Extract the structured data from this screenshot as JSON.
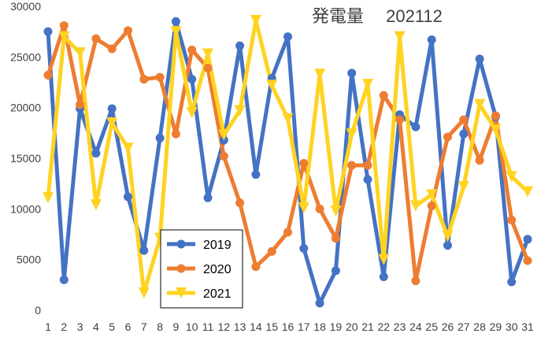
{
  "chart_data": {
    "type": "line",
    "title": "発電量　 202112",
    "xlabel": "",
    "ylabel": "",
    "x": [
      1,
      2,
      3,
      4,
      5,
      6,
      7,
      8,
      9,
      10,
      11,
      12,
      13,
      14,
      15,
      16,
      17,
      18,
      19,
      20,
      21,
      22,
      23,
      24,
      25,
      26,
      27,
      28,
      29,
      30,
      31
    ],
    "ylim": [
      0,
      30000
    ],
    "yticks": [
      0,
      5000,
      10000,
      15000,
      20000,
      25000,
      30000
    ],
    "grid": false,
    "legend_position": "bottom-left",
    "series": [
      {
        "name": "2019",
        "color": "#4472C4",
        "marker": "circle",
        "values": [
          27500,
          3000,
          19900,
          15500,
          19900,
          11200,
          5900,
          17000,
          28500,
          22800,
          11100,
          16800,
          26100,
          13400,
          22900,
          27000,
          6100,
          700,
          3900,
          23400,
          12900,
          3300,
          19300,
          18100,
          26700,
          6400,
          17400,
          24800,
          19100,
          2800,
          7000
        ]
      },
      {
        "name": "2020",
        "color": "#ED7D31",
        "marker": "circle",
        "values": [
          23200,
          28100,
          20300,
          26800,
          25800,
          27600,
          22800,
          23000,
          17400,
          25700,
          23900,
          15200,
          10600,
          4300,
          5800,
          7700,
          14500,
          10000,
          7100,
          14300,
          14300,
          21200,
          18800,
          2900,
          10300,
          17100,
          18800,
          14800,
          19200,
          8900,
          4900
        ]
      },
      {
        "name": "2021",
        "color": "#FFD320",
        "marker": "triangle-down",
        "values": [
          11100,
          27000,
          25400,
          10400,
          18500,
          16000,
          1700,
          7100,
          27500,
          19500,
          25300,
          17300,
          19700,
          28600,
          22200,
          18900,
          10100,
          23300,
          9800,
          17400,
          22300,
          5000,
          27000,
          10300,
          11400,
          7300,
          12200,
          20300,
          17800,
          13200,
          11700
        ]
      }
    ]
  }
}
